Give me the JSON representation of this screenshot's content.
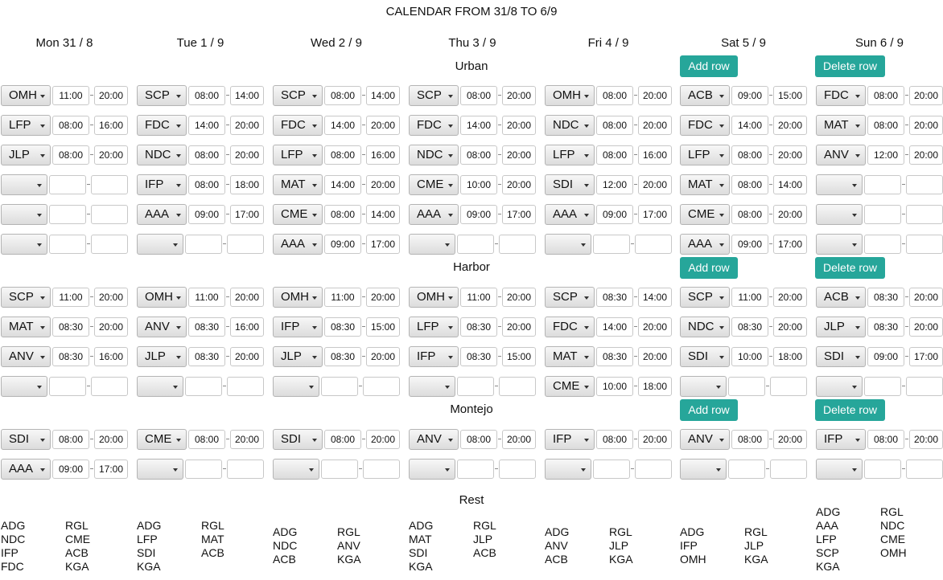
{
  "page": {
    "title": "CALENDAR FROM 31/8 TO 6/9"
  },
  "days": [
    "Mon 31 / 8",
    "Tue 1 / 9",
    "Wed 2 / 9",
    "Thu 3 / 9",
    "Fri 4 / 9",
    "Sat 5 / 9",
    "Sun 6 / 9"
  ],
  "labels": {
    "add_row": "Add row",
    "delete_row": "Delete row",
    "rest": "Rest"
  },
  "locations": [
    {
      "name": "Urban",
      "rows": [
        [
          {
            "code": "OMH",
            "start": "11:00",
            "end": "20:00"
          },
          {
            "code": "SCP",
            "start": "08:00",
            "end": "14:00"
          },
          {
            "code": "SCP",
            "start": "08:00",
            "end": "14:00"
          },
          {
            "code": "SCP",
            "start": "08:00",
            "end": "20:00"
          },
          {
            "code": "OMH",
            "start": "08:00",
            "end": "20:00"
          },
          {
            "code": "ACB",
            "start": "09:00",
            "end": "15:00"
          },
          {
            "code": "FDC",
            "start": "08:00",
            "end": "20:00"
          }
        ],
        [
          {
            "code": "LFP",
            "start": "08:00",
            "end": "16:00"
          },
          {
            "code": "FDC",
            "start": "14:00",
            "end": "20:00"
          },
          {
            "code": "FDC",
            "start": "14:00",
            "end": "20:00"
          },
          {
            "code": "FDC",
            "start": "14:00",
            "end": "20:00"
          },
          {
            "code": "NDC",
            "start": "08:00",
            "end": "20:00"
          },
          {
            "code": "FDC",
            "start": "14:00",
            "end": "20:00"
          },
          {
            "code": "MAT",
            "start": "08:00",
            "end": "20:00"
          }
        ],
        [
          {
            "code": "JLP",
            "start": "08:00",
            "end": "20:00"
          },
          {
            "code": "NDC",
            "start": "08:00",
            "end": "20:00"
          },
          {
            "code": "LFP",
            "start": "08:00",
            "end": "16:00"
          },
          {
            "code": "NDC",
            "start": "08:00",
            "end": "20:00"
          },
          {
            "code": "LFP",
            "start": "08:00",
            "end": "16:00"
          },
          {
            "code": "LFP",
            "start": "08:00",
            "end": "20:00"
          },
          {
            "code": "ANV",
            "start": "12:00",
            "end": "20:00"
          }
        ],
        [
          {
            "code": "",
            "start": "",
            "end": ""
          },
          {
            "code": "IFP",
            "start": "08:00",
            "end": "18:00"
          },
          {
            "code": "MAT",
            "start": "14:00",
            "end": "20:00"
          },
          {
            "code": "CME",
            "start": "10:00",
            "end": "20:00"
          },
          {
            "code": "SDI",
            "start": "12:00",
            "end": "20:00"
          },
          {
            "code": "MAT",
            "start": "08:00",
            "end": "14:00"
          },
          {
            "code": "",
            "start": "",
            "end": ""
          }
        ],
        [
          {
            "code": "",
            "start": "",
            "end": ""
          },
          {
            "code": "AAA",
            "start": "09:00",
            "end": "17:00"
          },
          {
            "code": "CME",
            "start": "08:00",
            "end": "14:00"
          },
          {
            "code": "AAA",
            "start": "09:00",
            "end": "17:00"
          },
          {
            "code": "AAA",
            "start": "09:00",
            "end": "17:00"
          },
          {
            "code": "CME",
            "start": "08:00",
            "end": "20:00"
          },
          {
            "code": "",
            "start": "",
            "end": ""
          }
        ],
        [
          {
            "code": "",
            "start": "",
            "end": ""
          },
          {
            "code": "",
            "start": "",
            "end": ""
          },
          {
            "code": "AAA",
            "start": "09:00",
            "end": "17:00"
          },
          {
            "code": "",
            "start": "",
            "end": ""
          },
          {
            "code": "",
            "start": "",
            "end": ""
          },
          {
            "code": "AAA",
            "start": "09:00",
            "end": "17:00"
          },
          {
            "code": "",
            "start": "",
            "end": ""
          }
        ]
      ]
    },
    {
      "name": "Harbor",
      "rows": [
        [
          {
            "code": "SCP",
            "start": "11:00",
            "end": "20:00"
          },
          {
            "code": "OMH",
            "start": "11:00",
            "end": "20:00"
          },
          {
            "code": "OMH",
            "start": "11:00",
            "end": "20:00"
          },
          {
            "code": "OMH",
            "start": "11:00",
            "end": "20:00"
          },
          {
            "code": "SCP",
            "start": "08:30",
            "end": "14:00"
          },
          {
            "code": "SCP",
            "start": "11:00",
            "end": "20:00"
          },
          {
            "code": "ACB",
            "start": "08:30",
            "end": "20:00"
          }
        ],
        [
          {
            "code": "MAT",
            "start": "08:30",
            "end": "20:00"
          },
          {
            "code": "ANV",
            "start": "08:30",
            "end": "16:00"
          },
          {
            "code": "IFP",
            "start": "08:30",
            "end": "15:00"
          },
          {
            "code": "LFP",
            "start": "08:30",
            "end": "20:00"
          },
          {
            "code": "FDC",
            "start": "14:00",
            "end": "20:00"
          },
          {
            "code": "NDC",
            "start": "08:30",
            "end": "20:00"
          },
          {
            "code": "JLP",
            "start": "08:30",
            "end": "20:00"
          }
        ],
        [
          {
            "code": "ANV",
            "start": "08:30",
            "end": "16:00"
          },
          {
            "code": "JLP",
            "start": "08:30",
            "end": "20:00"
          },
          {
            "code": "JLP",
            "start": "08:30",
            "end": "20:00"
          },
          {
            "code": "IFP",
            "start": "08:30",
            "end": "15:00"
          },
          {
            "code": "MAT",
            "start": "08:30",
            "end": "20:00"
          },
          {
            "code": "SDI",
            "start": "10:00",
            "end": "18:00"
          },
          {
            "code": "SDI",
            "start": "09:00",
            "end": "17:00"
          }
        ],
        [
          {
            "code": "",
            "start": "",
            "end": ""
          },
          {
            "code": "",
            "start": "",
            "end": ""
          },
          {
            "code": "",
            "start": "",
            "end": ""
          },
          {
            "code": "",
            "start": "",
            "end": ""
          },
          {
            "code": "CME",
            "start": "10:00",
            "end": "18:00"
          },
          {
            "code": "",
            "start": "",
            "end": ""
          },
          {
            "code": "",
            "start": "",
            "end": ""
          }
        ]
      ]
    },
    {
      "name": "Montejo",
      "rows": [
        [
          {
            "code": "SDI",
            "start": "08:00",
            "end": "20:00"
          },
          {
            "code": "CME",
            "start": "08:00",
            "end": "20:00"
          },
          {
            "code": "SDI",
            "start": "08:00",
            "end": "20:00"
          },
          {
            "code": "ANV",
            "start": "08:00",
            "end": "20:00"
          },
          {
            "code": "IFP",
            "start": "08:00",
            "end": "20:00"
          },
          {
            "code": "ANV",
            "start": "08:00",
            "end": "20:00"
          },
          {
            "code": "IFP",
            "start": "08:00",
            "end": "20:00"
          }
        ],
        [
          {
            "code": "AAA",
            "start": "09:00",
            "end": "17:00"
          },
          {
            "code": "",
            "start": "",
            "end": ""
          },
          {
            "code": "",
            "start": "",
            "end": ""
          },
          {
            "code": "",
            "start": "",
            "end": ""
          },
          {
            "code": "",
            "start": "",
            "end": ""
          },
          {
            "code": "",
            "start": "",
            "end": ""
          },
          {
            "code": "",
            "start": "",
            "end": ""
          }
        ]
      ]
    }
  ],
  "rest": [
    [
      [
        "ADG",
        "NDC",
        "IFP",
        "FDC"
      ],
      [
        "RGL",
        "CME",
        "ACB",
        "KGA"
      ]
    ],
    [
      [
        "ADG",
        "LFP",
        "SDI",
        "KGA"
      ],
      [
        "RGL",
        "MAT",
        "ACB"
      ]
    ],
    [
      [
        "ADG",
        "NDC",
        "ACB"
      ],
      [
        "RGL",
        "ANV",
        "KGA"
      ]
    ],
    [
      [
        "ADG",
        "MAT",
        "SDI",
        "KGA"
      ],
      [
        "RGL",
        "JLP",
        "ACB"
      ]
    ],
    [
      [
        "ADG",
        "ANV",
        "ACB"
      ],
      [
        "RGL",
        "JLP",
        "KGA"
      ]
    ],
    [
      [
        "ADG",
        "IFP",
        "OMH"
      ],
      [
        "RGL",
        "JLP",
        "KGA"
      ]
    ],
    [
      [
        "ADG",
        "AAA",
        "LFP",
        "SCP",
        "KGA"
      ],
      [
        "RGL",
        "NDC",
        "CME",
        "OMH"
      ]
    ]
  ]
}
